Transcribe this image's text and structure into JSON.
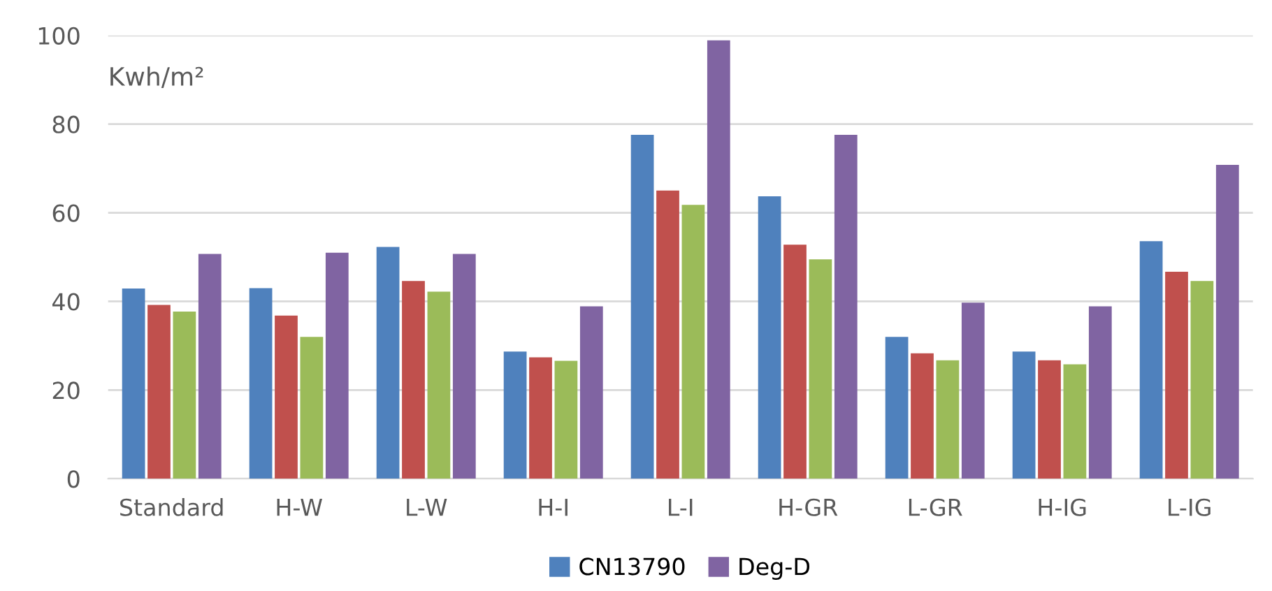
{
  "chart_data": {
    "type": "bar",
    "ylabel": "Kwh/m²",
    "categories": [
      "Standard",
      "H-W",
      "L-W",
      "H-I",
      "L-I",
      "H-GR",
      "L-GR",
      "H-IG",
      "L-IG"
    ],
    "series": [
      {
        "name": "CN13790",
        "color": "#4f81bd",
        "values": [
          42.9,
          43,
          52.3,
          28.7,
          77.6,
          63.7,
          32,
          28.7,
          53.6
        ]
      },
      {
        "color": "#c0504d",
        "values": [
          39.2,
          36.8,
          44.6,
          27.4,
          65,
          52.8,
          28.3,
          26.7,
          46.7
        ]
      },
      {
        "color": "#9bbb59",
        "values": [
          37.7,
          32,
          42.2,
          26.6,
          61.8,
          49.5,
          26.7,
          25.8,
          44.6
        ]
      },
      {
        "name": "Deg-D",
        "color": "#8064a2",
        "values": [
          50.7,
          51,
          50.7,
          38.9,
          98.9,
          77.6,
          39.7,
          38.9,
          70.8
        ]
      }
    ],
    "ylim": [
      0,
      100
    ],
    "yticks": [
      0,
      20,
      40,
      60,
      80,
      100
    ],
    "grid": "y",
    "legend": "bottom"
  }
}
